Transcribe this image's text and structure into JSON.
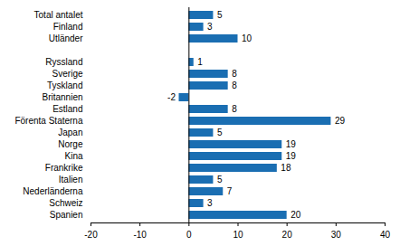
{
  "chart_data": {
    "type": "bar",
    "orientation": "horizontal",
    "categories": [
      "Total antalet",
      "Finland",
      "Utländer",
      null,
      "Ryssland",
      "Sverige",
      "Tyskland",
      "Britannien",
      "Estland",
      "Förenta Staterna",
      "Japan",
      "Norge",
      "Kina",
      "Frankrike",
      "Italien",
      "Nederländerna",
      "Schweiz",
      "Spanien"
    ],
    "values": [
      5,
      3,
      10,
      null,
      1,
      8,
      8,
      -2,
      8,
      29,
      5,
      19,
      19,
      18,
      5,
      7,
      3,
      20
    ],
    "color": "#1a6eb2",
    "xlim": [
      -20,
      40
    ],
    "xticks": [
      -20,
      -10,
      0,
      10,
      20,
      30,
      40
    ],
    "grid": false,
    "data_labels": true
  }
}
